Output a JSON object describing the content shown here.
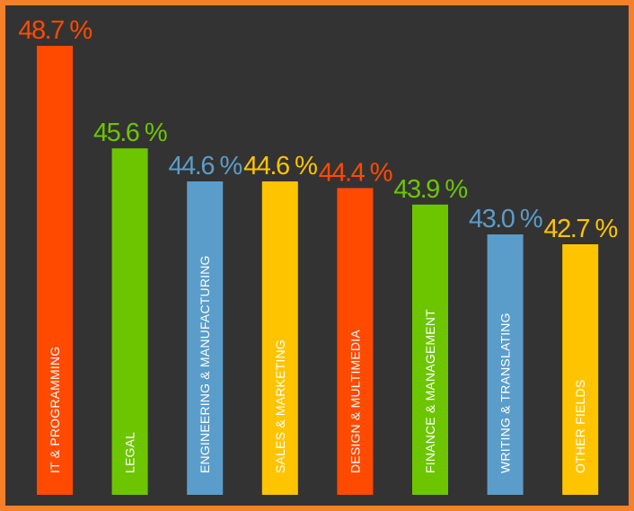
{
  "chart_data": {
    "type": "bar",
    "categories": [
      "IT & PROGRAMMING",
      "LEGAL",
      "ENGINEERING & MANUFACTURING",
      "SALES & MARKETING",
      "DESIGN & MULTIMEDIA",
      "FINANCE & MANAGEMENT",
      "WRITING & TRANSLATING",
      "OTHER FIELDS"
    ],
    "values": [
      48.7,
      45.6,
      44.6,
      44.6,
      44.4,
      43.9,
      43.0,
      42.7
    ],
    "value_labels": [
      "48.7 %",
      "45.6 %",
      "44.6 %",
      "44.6 %",
      "44.4 %",
      "43.9 %",
      "43.0 %",
      "42.7 %"
    ],
    "colors": [
      "#ff4a00",
      "#6dc500",
      "#5b9dca",
      "#ffc400",
      "#ff4a00",
      "#6dc500",
      "#5b9dca",
      "#ffc400"
    ],
    "background": "#333333",
    "border_color": "#f6802a",
    "title": "",
    "xlabel": "",
    "ylabel": "",
    "grid": false,
    "legend": "none"
  }
}
